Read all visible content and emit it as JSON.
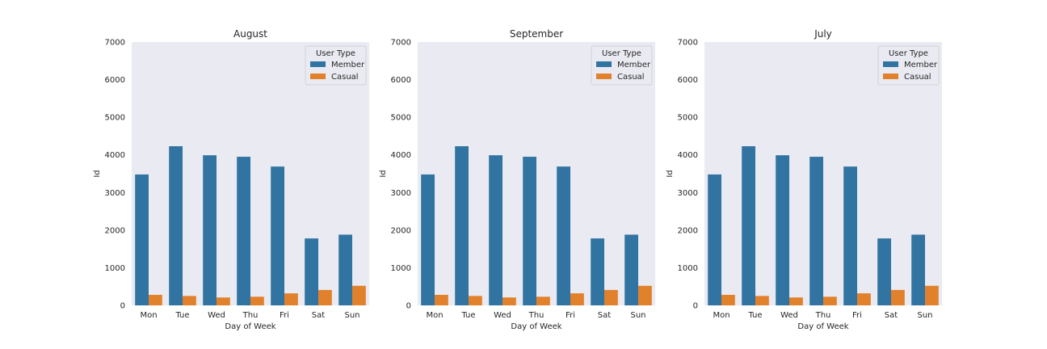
{
  "chart_data": [
    {
      "type": "bar",
      "title": "August",
      "xlabel": "Day of Week",
      "ylabel": "Id",
      "ylim": [
        0,
        7000
      ],
      "yticks": [
        "0",
        "1000",
        "2000",
        "3000",
        "4000",
        "5000",
        "6000",
        "7000"
      ],
      "categories": [
        "Mon",
        "Tue",
        "Wed",
        "Thu",
        "Fri",
        "Sat",
        "Sun"
      ],
      "legend_title": "User Type",
      "legend_position": "top-right",
      "grid": false,
      "series": [
        {
          "name": "Member",
          "color": "#3274a1",
          "values": [
            3480,
            4230,
            3990,
            3950,
            3690,
            1780,
            1880
          ]
        },
        {
          "name": "Casual",
          "color": "#e1812c",
          "values": [
            280,
            250,
            210,
            230,
            320,
            410,
            520
          ]
        }
      ]
    },
    {
      "type": "bar",
      "title": "September",
      "xlabel": "Day of Week",
      "ylabel": "Id",
      "ylim": [
        0,
        7000
      ],
      "yticks": [
        "0",
        "1000",
        "2000",
        "3000",
        "4000",
        "5000",
        "6000",
        "7000"
      ],
      "categories": [
        "Mon",
        "Tue",
        "Wed",
        "Thu",
        "Fri",
        "Sat",
        "Sun"
      ],
      "legend_title": "User Type",
      "legend_position": "top-right",
      "grid": false,
      "series": [
        {
          "name": "Member",
          "color": "#3274a1",
          "values": [
            3480,
            4230,
            3990,
            3950,
            3690,
            1780,
            1880
          ]
        },
        {
          "name": "Casual",
          "color": "#e1812c",
          "values": [
            280,
            250,
            210,
            230,
            320,
            410,
            520
          ]
        }
      ]
    },
    {
      "type": "bar",
      "title": "July",
      "xlabel": "Day of Week",
      "ylabel": "Id",
      "ylim": [
        0,
        7000
      ],
      "yticks": [
        "0",
        "1000",
        "2000",
        "3000",
        "4000",
        "5000",
        "6000",
        "7000"
      ],
      "categories": [
        "Mon",
        "Tue",
        "Wed",
        "Thu",
        "Fri",
        "Sat",
        "Sun"
      ],
      "legend_title": "User Type",
      "legend_position": "top-right",
      "grid": false,
      "series": [
        {
          "name": "Member",
          "color": "#3274a1",
          "values": [
            3480,
            4230,
            3990,
            3950,
            3690,
            1780,
            1880
          ]
        },
        {
          "name": "Casual",
          "color": "#e1812c",
          "values": [
            280,
            250,
            210,
            230,
            320,
            410,
            520
          ]
        }
      ]
    }
  ]
}
